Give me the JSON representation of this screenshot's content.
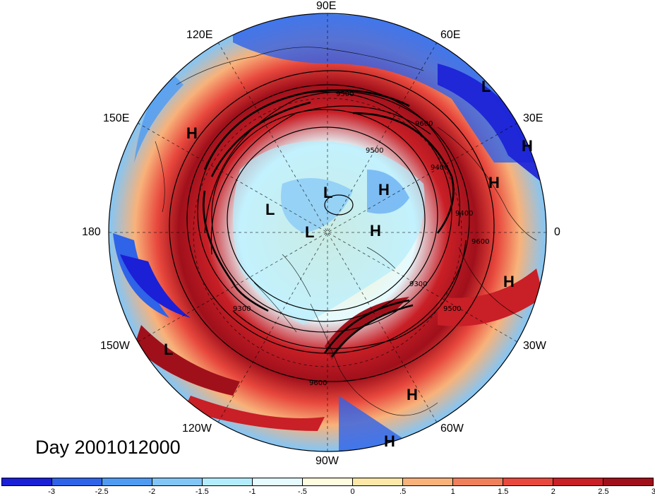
{
  "title": "Day 2001012000",
  "longitude_labels": {
    "lon_90e": "90E",
    "lon_60e": "60E",
    "lon_120e": "120E",
    "lon_150e": "150E",
    "lon_30e": "30E",
    "lon_180": "180",
    "lon_0": "0",
    "lon_150w": "150W",
    "lon_30w": "30W",
    "lon_120w": "120W",
    "lon_60w": "60W",
    "lon_90w": "90W"
  },
  "pressure_centers": [
    "L",
    "H",
    "H",
    "L",
    "H",
    "L",
    "L",
    "H",
    "H",
    "L",
    "H",
    "H"
  ],
  "contour_labels": [
    "9500",
    "9600",
    "9400",
    "9300",
    "9500",
    "9600",
    "9500",
    "9400",
    "9300",
    "9600"
  ],
  "colorbar": {
    "colors": [
      "#1b1fd6",
      "#2f63e8",
      "#4f9bf2",
      "#82c6f8",
      "#b3ecfc",
      "#e6fbff",
      "#fffce0",
      "#fde8a8",
      "#f8b27a",
      "#f07f5c",
      "#e8483d",
      "#c91f26",
      "#a0101b"
    ],
    "ticks": [
      "-3",
      "-2.5",
      "-2",
      "-1.5",
      "-1",
      "-.5",
      "0",
      ".5",
      "1",
      "1.5",
      "2",
      "2.5",
      "3"
    ]
  }
}
